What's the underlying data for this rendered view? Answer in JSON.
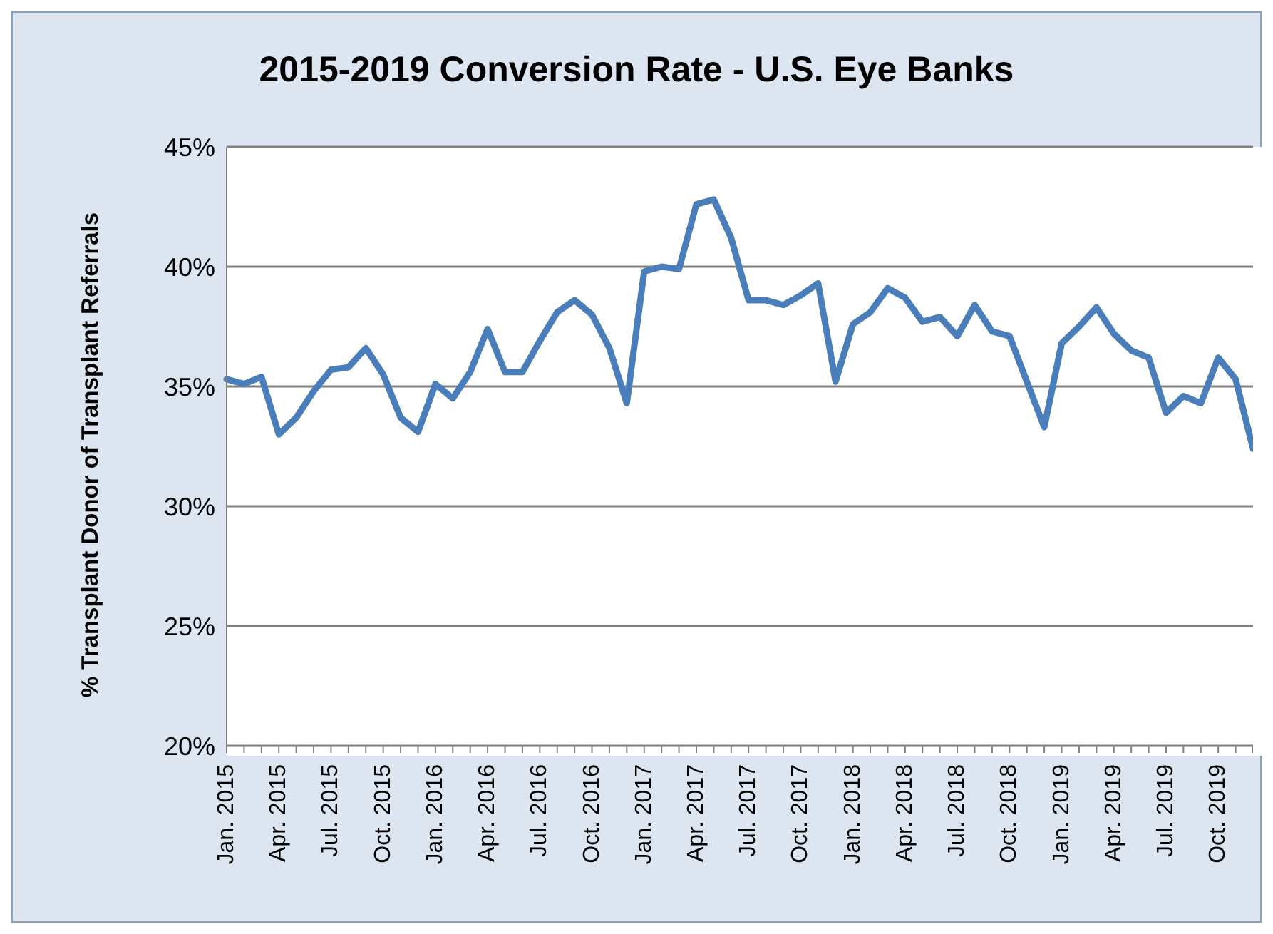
{
  "chart_data": {
    "type": "line",
    "title": "2015-2019 Conversion Rate - U.S. Eye Banks",
    "ylabel": "% Transplant Donor of Transplant  Referrals",
    "categories": [
      "Jan. 2015",
      null,
      null,
      "Apr. 2015",
      null,
      null,
      "Jul. 2015",
      null,
      null,
      "Oct. 2015",
      null,
      null,
      "Jan. 2016",
      null,
      null,
      "Apr. 2016",
      null,
      null,
      "Jul. 2016",
      null,
      null,
      "Oct. 2016",
      null,
      null,
      "Jan. 2017",
      null,
      null,
      "Apr. 2017",
      null,
      null,
      "Jul. 2017",
      null,
      null,
      "Oct. 2017",
      null,
      null,
      "Jan. 2018",
      null,
      null,
      "Apr. 2018",
      null,
      null,
      "Jul. 2018",
      null,
      null,
      "Oct. 2018",
      null,
      null,
      "Jan. 2019",
      null,
      null,
      "Apr. 2019",
      null,
      null,
      "Jul. 2019",
      null,
      null,
      "Oct. 2019",
      null,
      null
    ],
    "series": [
      {
        "color": "#4a7ebb",
        "values": [
          35.3,
          35.1,
          35.4,
          33.0,
          33.7,
          34.8,
          35.7,
          35.8,
          36.6,
          35.5,
          33.7,
          33.1,
          35.1,
          34.5,
          35.6,
          37.4,
          35.6,
          35.6,
          36.9,
          38.1,
          38.6,
          38.0,
          36.6,
          34.3,
          39.8,
          40.0,
          39.9,
          42.6,
          42.8,
          41.2,
          38.6,
          38.6,
          38.4,
          38.8,
          39.3,
          35.2,
          37.6,
          38.1,
          39.1,
          38.7,
          37.7,
          37.9,
          37.1,
          38.4,
          37.3,
          37.1,
          35.2,
          33.3,
          36.8,
          37.5,
          38.3,
          37.2,
          36.5,
          36.2,
          33.9,
          34.6,
          34.3,
          36.2,
          35.3,
          32.4
        ]
      }
    ],
    "ylim": [
      20,
      45
    ],
    "yticks": [
      {
        "value": 20,
        "label": "20%"
      },
      {
        "value": 25,
        "label": "25%"
      },
      {
        "value": 30,
        "label": "30%"
      },
      {
        "value": 35,
        "label": "35%"
      },
      {
        "value": 40,
        "label": "40%"
      },
      {
        "value": 45,
        "label": "45%"
      }
    ],
    "grid": "y",
    "legend": false,
    "marker": "none",
    "line_style": "solid"
  }
}
